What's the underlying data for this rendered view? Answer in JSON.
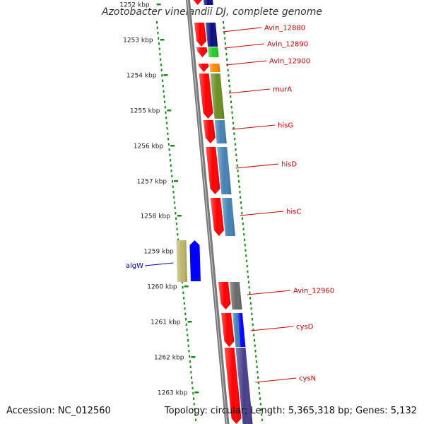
{
  "title": "Azotobacter vinelandii DJ, complete genome",
  "footer": {
    "accession": "Accession: NC_012560",
    "summary": "Topology: circular; Length: 5,365,318 bp; Genes: 5,132"
  },
  "colors": {
    "backbone": "#7a7a7a",
    "ruler": "#1a8a1a",
    "gene_label_red": "#cc0000",
    "gene_label_blue": "#0000cc"
  },
  "ruler_ticks": [
    "1252 kbp",
    "1253 kbp",
    "1254 kbp",
    "1255 kbp",
    "1256 kbp",
    "1257 kbp",
    "1258 kbp",
    "1259 kbp",
    "1260 kbp",
    "1261 kbp",
    "1262 kbp",
    "1263 kbp"
  ],
  "genes": [
    {
      "name": "Avin_12880",
      "color": "#0a0a80",
      "strand": "forward"
    },
    {
      "name": "Avin_12890",
      "color": "#22cc22",
      "strand": "forward"
    },
    {
      "name": "Avin_12900",
      "color": "#ff8800",
      "strand": "forward"
    },
    {
      "name": "murA",
      "color": "#6b8e23",
      "strand": "forward"
    },
    {
      "name": "hisG",
      "color": "#4682b4",
      "strand": "forward"
    },
    {
      "name": "hisD",
      "color": "#4682b4",
      "strand": "forward"
    },
    {
      "name": "hisC",
      "color": "#4682b4",
      "strand": "forward"
    },
    {
      "name": "algW",
      "color": "#bdb76b",
      "strand": "reverse"
    },
    {
      "name": "Avin_12960",
      "color": "#696969",
      "strand": "forward"
    },
    {
      "name": "cysD",
      "color": "#4682b4",
      "strand": "forward"
    },
    {
      "name": "cysN",
      "color": "#483d8b",
      "strand": "forward"
    }
  ]
}
